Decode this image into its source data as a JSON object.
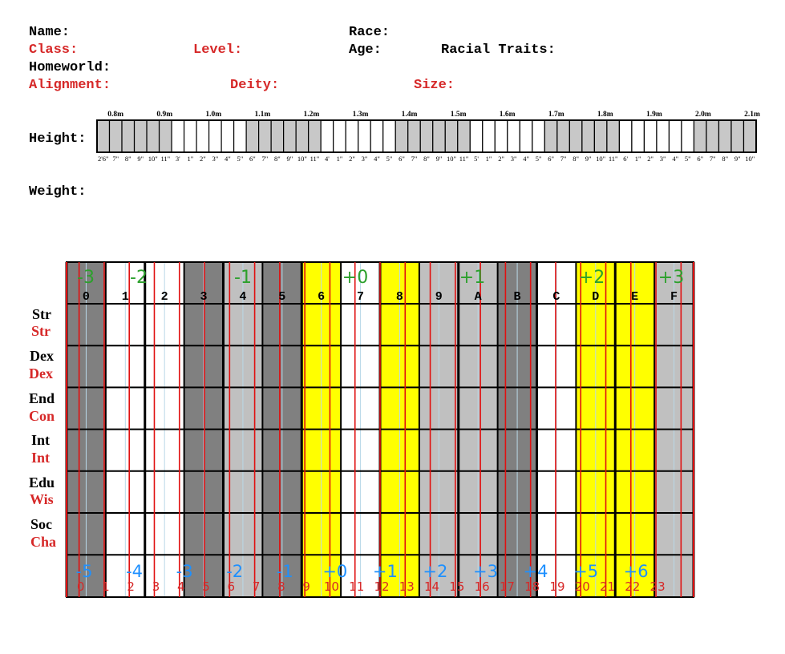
{
  "fields": {
    "name": "Name:",
    "race": "Race:",
    "class": "Class:",
    "level": "Level:",
    "age": "Age:",
    "racial_traits": "Racial Traits:",
    "homeworld": "Homeworld:",
    "alignment": "Alignment:",
    "deity": "Deity:",
    "size": "Size:",
    "height": "Height:",
    "weight": "Weight:"
  },
  "height_ruler": {
    "metric_labels": [
      "0.8m",
      "0.9m",
      "1.0m",
      "1.1m",
      "1.2m",
      "1.3m",
      "1.4m",
      "1.5m",
      "1.6m",
      "1.7m",
      "1.8m",
      "1.9m",
      "2.0m",
      "2.1m"
    ],
    "imperial_labels": [
      "2'6\"",
      "7\"",
      "8\"",
      "9\"",
      "10\"",
      "11\"",
      "3'",
      "1\"",
      "2\"",
      "3\"",
      "4\"",
      "5\"",
      "6\"",
      "7\"",
      "8\"",
      "9\"",
      "10\"",
      "11\"",
      "4'",
      "1\"",
      "2\"",
      "3\"",
      "4\"",
      "5\"",
      "6\"",
      "7\"",
      "8\"",
      "9\"",
      "10\"",
      "11\"",
      "5'",
      "1\"",
      "2\"",
      "3\"",
      "4\"",
      "5\"",
      "6\"",
      "7\"",
      "8\"",
      "9\"",
      "10\"",
      "11\"",
      "6'",
      "1\"",
      "2\"",
      "3\"",
      "4\"",
      "5\"",
      "6\"",
      "7\"",
      "8\"",
      "9\"",
      "10\""
    ],
    "shaded_ranges": [
      [
        0,
        5
      ],
      [
        12,
        17
      ],
      [
        24,
        29
      ],
      [
        36,
        41
      ],
      [
        48,
        52
      ]
    ]
  },
  "stat_grid": {
    "hex_columns": [
      "0",
      "1",
      "2",
      "3",
      "4",
      "5",
      "6",
      "7",
      "8",
      "9",
      "A",
      "B",
      "C",
      "D",
      "E",
      "F"
    ],
    "traveller_modifiers": [
      "-3",
      "-2",
      "-1",
      "+0",
      "+1",
      "+2",
      "+3"
    ],
    "column_colors": [
      "#808080",
      "#ffffff",
      "#ffffff",
      "#808080",
      "#c0c0c0",
      "#808080",
      "#ffff00",
      "#ffffff",
      "#ffff00",
      "#c0c0c0",
      "#c0c0c0",
      "#808080",
      "#ffffff",
      "#ffff00",
      "#ffff00",
      "#c0c0c0"
    ],
    "rows": [
      {
        "traveller": "Str",
        "dnd": "Str"
      },
      {
        "traveller": "Dex",
        "dnd": "Dex"
      },
      {
        "traveller": "End",
        "dnd": "Con"
      },
      {
        "traveller": "Int",
        "dnd": "Int"
      },
      {
        "traveller": "Edu",
        "dnd": "Wis"
      },
      {
        "traveller": "Soc",
        "dnd": "Cha"
      }
    ],
    "dnd_modifiers": [
      "-5",
      "-4",
      "-3",
      "-2",
      "-1",
      "+0",
      "+1",
      "+2",
      "+3",
      "+4",
      "+5",
      "+6"
    ],
    "dnd_scores": [
      "0",
      "1",
      "2",
      "3",
      "4",
      "5",
      "6",
      "7",
      "8",
      "9",
      "10",
      "11",
      "12",
      "13",
      "14",
      "15",
      "16",
      "17",
      "18",
      "19",
      "20",
      "21",
      "22",
      "23"
    ]
  },
  "colors": {
    "label_black": "#000000",
    "label_red": "#d62828",
    "traveller_mod": "#2ca02c",
    "dnd_mod": "#1e90ff",
    "dnd_score": "#d62828",
    "grid_red": "#e01010"
  }
}
